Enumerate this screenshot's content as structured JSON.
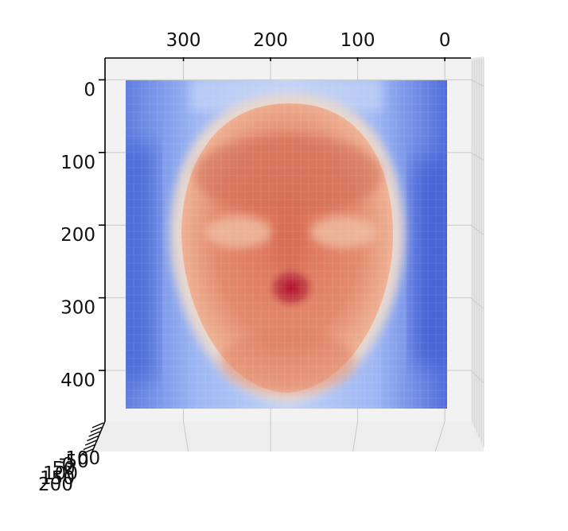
{
  "chart_data": {
    "type": "surface3d",
    "title": "",
    "xlabel": "",
    "ylabel": "",
    "zlabel": "",
    "colormap": "coolwarm",
    "x_axis": {
      "position": "top",
      "inverted": true,
      "ticks": [
        0,
        100,
        200,
        300
      ],
      "range": [
        -30,
        390
      ]
    },
    "y_axis": {
      "position": "left",
      "inverted": true,
      "ticks": [
        0,
        100,
        200,
        300,
        400
      ],
      "range": [
        -30,
        470
      ]
    },
    "z_axis": {
      "tick_labels": [
        "-100",
        "-50",
        "0",
        "50",
        "100",
        "150",
        "200"
      ]
    },
    "surface": {
      "x_range": [
        0,
        371
      ],
      "y_range": [
        0,
        441
      ],
      "depicts": "face depth map"
    },
    "grid": true,
    "pane_color": "#f2f2f2"
  }
}
